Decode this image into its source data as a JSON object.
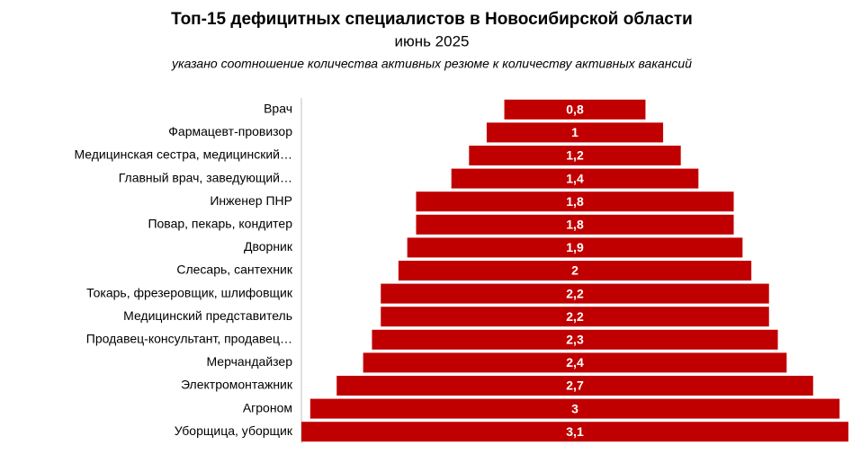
{
  "chart_data": {
    "type": "funnel",
    "title": "Топ-15 дефицитных специалистов в Новосибирской области",
    "subtitle": "июнь 2025",
    "note": "указано соотношение количества активных резюме к количеству активных вакансий",
    "categories": [
      "Врач",
      "Фармацевт-провизор",
      "Медицинская сестра, медицинский…",
      "Главный врач, заведующий…",
      "Инженер ПНР",
      "Повар, пекарь, кондитер",
      "Дворник",
      "Слесарь, сантехник",
      "Токарь, фрезеровщик, шлифовщик",
      "Медицинский представитель",
      "Продавец-консультант, продавец…",
      "Мерчандайзер",
      "Электромонтажник",
      "Агроном",
      "Уборщица, уборщик"
    ],
    "values": [
      0.8,
      1,
      1.2,
      1.4,
      1.8,
      1.8,
      1.9,
      2,
      2.2,
      2.2,
      2.3,
      2.4,
      2.7,
      3,
      3.1
    ],
    "value_labels": [
      "0,8",
      "1",
      "1,2",
      "1,4",
      "1,8",
      "1,8",
      "1,9",
      "2",
      "2,2",
      "2,2",
      "2,3",
      "2,4",
      "2,7",
      "3",
      "3,1"
    ],
    "color": "#c00000"
  }
}
